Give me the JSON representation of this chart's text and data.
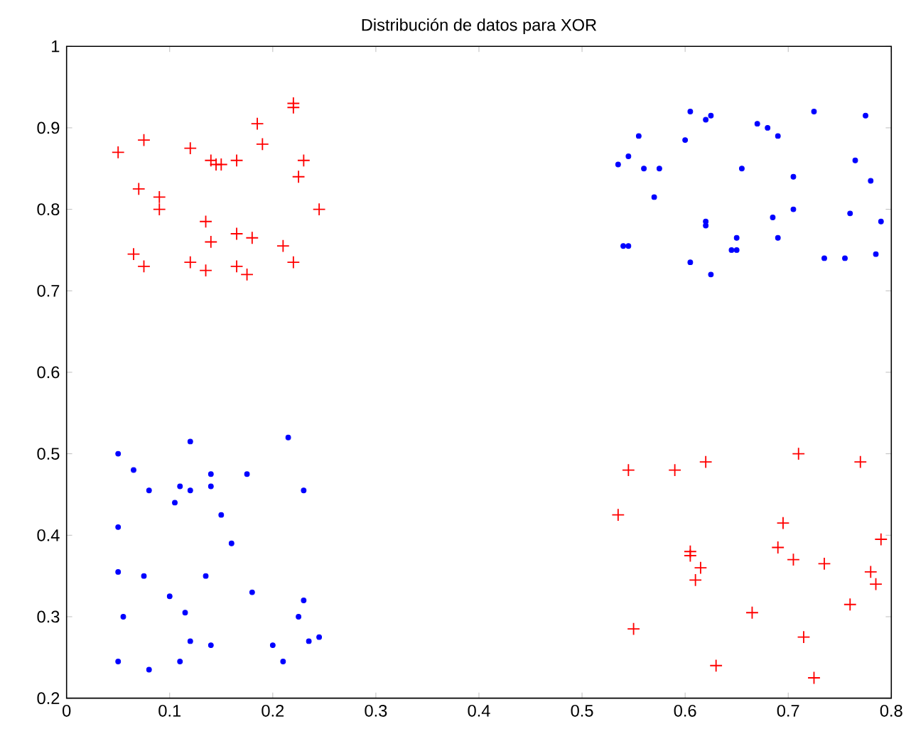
{
  "chart_data": {
    "type": "scatter",
    "title": "Distribución de datos para XOR",
    "xlim": [
      0,
      0.8
    ],
    "ylim": [
      0.2,
      1
    ],
    "xticks": [
      0,
      0.1,
      0.2,
      0.3,
      0.4,
      0.5,
      0.6,
      0.7,
      0.8
    ],
    "yticks": [
      0.2,
      0.3,
      0.4,
      0.5,
      0.6,
      0.7,
      0.8,
      0.9,
      1
    ],
    "grid": false,
    "series": [
      {
        "color": "#ff0000",
        "marker": "cross",
        "x": [
          0.05,
          0.075,
          0.07,
          0.09,
          0.09,
          0.12,
          0.14,
          0.145,
          0.15,
          0.165,
          0.185,
          0.19,
          0.22,
          0.22,
          0.225,
          0.23,
          0.245,
          0.21,
          0.22,
          0.065,
          0.075,
          0.12,
          0.135,
          0.135,
          0.14,
          0.165,
          0.18,
          0.165,
          0.175,
          0.535,
          0.545,
          0.55,
          0.59,
          0.605,
          0.605,
          0.61,
          0.615,
          0.62,
          0.63,
          0.665,
          0.69,
          0.695,
          0.705,
          0.71,
          0.715,
          0.725,
          0.735,
          0.76,
          0.77,
          0.78,
          0.785,
          0.79
        ],
        "values": [
          0.87,
          0.885,
          0.825,
          0.815,
          0.8,
          0.875,
          0.86,
          0.855,
          0.855,
          0.86,
          0.905,
          0.88,
          0.925,
          0.93,
          0.84,
          0.86,
          0.8,
          0.755,
          0.735,
          0.745,
          0.73,
          0.735,
          0.725,
          0.785,
          0.76,
          0.77,
          0.765,
          0.73,
          0.72,
          0.425,
          0.48,
          0.285,
          0.48,
          0.38,
          0.375,
          0.345,
          0.36,
          0.49,
          0.24,
          0.305,
          0.385,
          0.415,
          0.37,
          0.5,
          0.275,
          0.225,
          0.365,
          0.315,
          0.49,
          0.355,
          0.34,
          0.395
        ]
      },
      {
        "color": "#0000ff",
        "marker": "circle",
        "x": [
          0.535,
          0.545,
          0.54,
          0.545,
          0.555,
          0.56,
          0.57,
          0.575,
          0.6,
          0.605,
          0.62,
          0.625,
          0.605,
          0.62,
          0.62,
          0.625,
          0.645,
          0.65,
          0.65,
          0.655,
          0.67,
          0.68,
          0.69,
          0.685,
          0.69,
          0.705,
          0.705,
          0.725,
          0.735,
          0.755,
          0.76,
          0.765,
          0.775,
          0.78,
          0.785,
          0.79,
          0.05,
          0.05,
          0.05,
          0.055,
          0.05,
          0.065,
          0.075,
          0.08,
          0.08,
          0.1,
          0.105,
          0.11,
          0.11,
          0.12,
          0.12,
          0.115,
          0.12,
          0.135,
          0.14,
          0.14,
          0.14,
          0.15,
          0.16,
          0.175,
          0.18,
          0.2,
          0.215,
          0.21,
          0.225,
          0.23,
          0.23,
          0.235,
          0.245
        ],
        "values": [
          0.855,
          0.865,
          0.755,
          0.755,
          0.89,
          0.85,
          0.815,
          0.85,
          0.885,
          0.92,
          0.91,
          0.915,
          0.735,
          0.785,
          0.78,
          0.72,
          0.75,
          0.765,
          0.75,
          0.85,
          0.905,
          0.9,
          0.89,
          0.79,
          0.765,
          0.84,
          0.8,
          0.92,
          0.74,
          0.74,
          0.795,
          0.86,
          0.915,
          0.835,
          0.745,
          0.785,
          0.5,
          0.41,
          0.355,
          0.3,
          0.245,
          0.48,
          0.35,
          0.455,
          0.235,
          0.325,
          0.44,
          0.46,
          0.245,
          0.515,
          0.455,
          0.305,
          0.27,
          0.35,
          0.475,
          0.46,
          0.265,
          0.425,
          0.39,
          0.475,
          0.33,
          0.265,
          0.52,
          0.245,
          0.3,
          0.455,
          0.32,
          0.27,
          0.275
        ]
      }
    ]
  }
}
